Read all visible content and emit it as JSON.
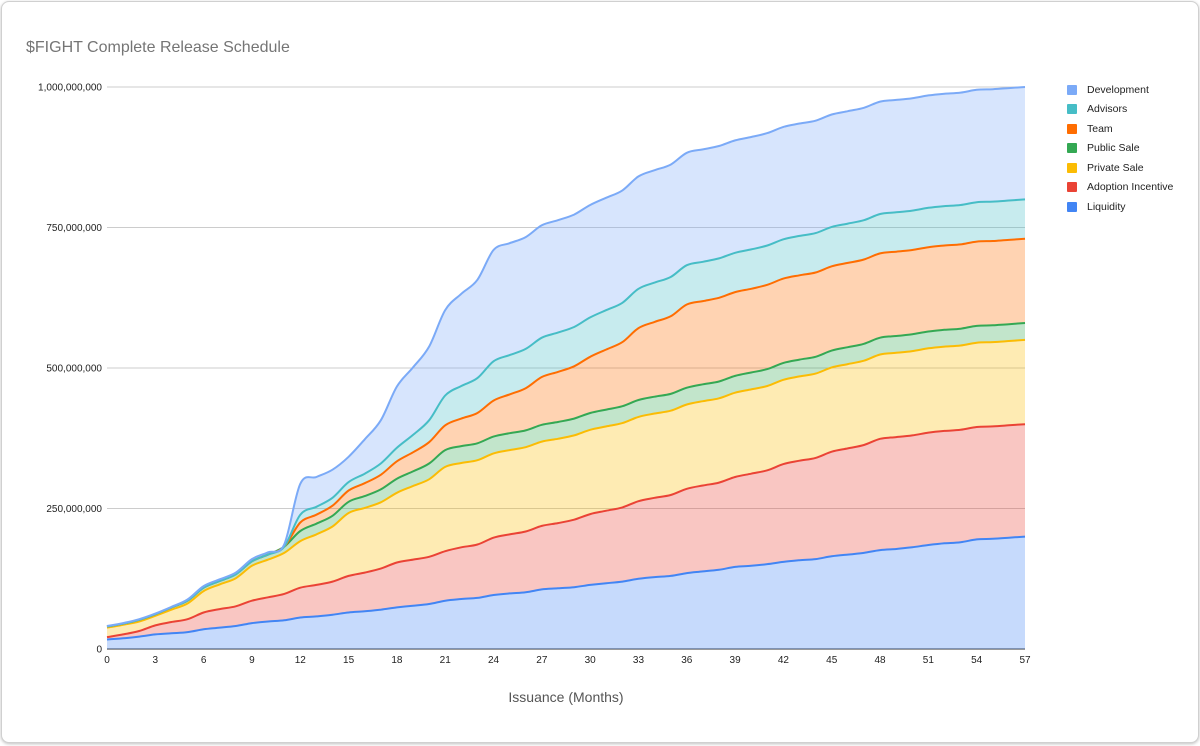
{
  "chart_data": {
    "type": "area",
    "stacked": true,
    "title": "$FIGHT Complete Release Schedule",
    "xlabel": "Issuance (Months)",
    "ylabel": "",
    "x": [
      0,
      1,
      2,
      3,
      4,
      5,
      6,
      7,
      8,
      9,
      10,
      11,
      12,
      13,
      14,
      15,
      16,
      17,
      18,
      19,
      20,
      21,
      22,
      23,
      24,
      25,
      26,
      27,
      28,
      29,
      30,
      31,
      32,
      33,
      34,
      35,
      36,
      37,
      38,
      39,
      40,
      41,
      42,
      43,
      44,
      45,
      46,
      47,
      48,
      49,
      50,
      51,
      52,
      53,
      54,
      55,
      56,
      57
    ],
    "xlim": [
      0,
      57
    ],
    "ylim": [
      0,
      1000000000
    ],
    "x_ticks": [
      "0",
      "3",
      "6",
      "9",
      "12",
      "15",
      "18",
      "21",
      "24",
      "27",
      "30",
      "33",
      "36",
      "39",
      "42",
      "45",
      "48",
      "51",
      "54",
      "57"
    ],
    "y_ticks": [
      "0",
      "250,000,000",
      "500,000,000",
      "750,000,000",
      "1,000,000,000"
    ],
    "grid": true,
    "legend_position": "right",
    "curve": "smooth",
    "series": [
      {
        "name": "Liquidity",
        "color": "#4285F4",
        "values": [
          17000000,
          19000000,
          22000000,
          26000000,
          28000000,
          30000000,
          35000000,
          38000000,
          41000000,
          46000000,
          49000000,
          51000000,
          56000000,
          58000000,
          61000000,
          65000000,
          67000000,
          70000000,
          74000000,
          77000000,
          80000000,
          86000000,
          89000000,
          91000000,
          96000000,
          99000000,
          101000000,
          106000000,
          108000000,
          110000000,
          114000000,
          117000000,
          120000000,
          125000000,
          128000000,
          130000000,
          135000000,
          138000000,
          141000000,
          146000000,
          148000000,
          151000000,
          155000000,
          158000000,
          160000000,
          165000000,
          168000000,
          171000000,
          176000000,
          178000000,
          181000000,
          185000000,
          188000000,
          190000000,
          195000000,
          196000000,
          198000000,
          200000000
        ]
      },
      {
        "name": "Adoption Incentive",
        "color": "#EA4335",
        "values": [
          4000000,
          7000000,
          10000000,
          16000000,
          20000000,
          23000000,
          30000000,
          33000000,
          35000000,
          40000000,
          43000000,
          47000000,
          53000000,
          56000000,
          59000000,
          65000000,
          69000000,
          73000000,
          80000000,
          82000000,
          84000000,
          88000000,
          92000000,
          95000000,
          102000000,
          105000000,
          108000000,
          113000000,
          116000000,
          120000000,
          126000000,
          129000000,
          132000000,
          138000000,
          141000000,
          144000000,
          150000000,
          153000000,
          155000000,
          160000000,
          164000000,
          167000000,
          174000000,
          177000000,
          180000000,
          186000000,
          189000000,
          192000000,
          198000000,
          199000000,
          199000000,
          200000000,
          200000000,
          200000000,
          200000000,
          200000000,
          200000000,
          200000000
        ]
      },
      {
        "name": "Private Sale",
        "color": "#FBBC04",
        "values": [
          17000000,
          17000000,
          17000000,
          17000000,
          22000000,
          28000000,
          38000000,
          44000000,
          50000000,
          62000000,
          67000000,
          73000000,
          83000000,
          90000000,
          98000000,
          112000000,
          115000000,
          118000000,
          124000000,
          131000000,
          138000000,
          150000000,
          150000000,
          150000000,
          150000000,
          150000000,
          150000000,
          150000000,
          150000000,
          150000000,
          150000000,
          150000000,
          150000000,
          150000000,
          150000000,
          150000000,
          150000000,
          150000000,
          150000000,
          150000000,
          150000000,
          150000000,
          150000000,
          150000000,
          150000000,
          150000000,
          150000000,
          150000000,
          150000000,
          150000000,
          150000000,
          150000000,
          150000000,
          150000000,
          150000000,
          150000000,
          150000000,
          150000000
        ]
      },
      {
        "name": "Public Sale",
        "color": "#34A853",
        "values": [
          2000000,
          2000000,
          3000000,
          3000000,
          4000000,
          5000000,
          6000000,
          6000000,
          7000000,
          8000000,
          9000000,
          11000000,
          18000000,
          19000000,
          19000000,
          20000000,
          21000000,
          23000000,
          25000000,
          26000000,
          28000000,
          30000000,
          30000000,
          30000000,
          30000000,
          30000000,
          30000000,
          30000000,
          30000000,
          30000000,
          30000000,
          30000000,
          30000000,
          30000000,
          30000000,
          30000000,
          30000000,
          30000000,
          30000000,
          30000000,
          30000000,
          30000000,
          30000000,
          30000000,
          30000000,
          30000000,
          30000000,
          30000000,
          30000000,
          30000000,
          30000000,
          30000000,
          30000000,
          30000000,
          30000000,
          30000000,
          30000000,
          30000000
        ]
      },
      {
        "name": "Team",
        "color": "#FF6D01",
        "values": [
          0,
          0,
          0,
          0,
          0,
          0,
          0,
          0,
          0,
          0,
          0,
          0,
          15000000,
          16000000,
          18000000,
          20000000,
          23000000,
          26000000,
          31000000,
          34000000,
          38000000,
          44000000,
          49000000,
          54000000,
          64000000,
          69000000,
          75000000,
          85000000,
          89000000,
          93000000,
          100000000,
          107000000,
          114000000,
          128000000,
          133000000,
          138000000,
          148000000,
          148000000,
          149000000,
          149000000,
          149000000,
          150000000,
          150000000,
          150000000,
          150000000,
          150000000,
          150000000,
          150000000,
          150000000,
          150000000,
          150000000,
          150000000,
          150000000,
          150000000,
          150000000,
          150000000,
          150000000,
          150000000
        ]
      },
      {
        "name": "Advisors",
        "color": "#46BDC6",
        "values": [
          0,
          0,
          0,
          0,
          0,
          0,
          0,
          0,
          0,
          0,
          0,
          0,
          14000000,
          14000000,
          14000000,
          15000000,
          17000000,
          20000000,
          24000000,
          31000000,
          39000000,
          53000000,
          58000000,
          62000000,
          70000000,
          70000000,
          70000000,
          70000000,
          70000000,
          70000000,
          70000000,
          70000000,
          70000000,
          70000000,
          70000000,
          70000000,
          70000000,
          70000000,
          70000000,
          70000000,
          70000000,
          70000000,
          70000000,
          70000000,
          70000000,
          70000000,
          70000000,
          70000000,
          70000000,
          70000000,
          70000000,
          70000000,
          70000000,
          70000000,
          70000000,
          70000000,
          70000000,
          70000000
        ]
      },
      {
        "name": "Development",
        "color": "#7BAAF7",
        "values": [
          1000000,
          1000000,
          1000000,
          1000000,
          1000000,
          2000000,
          3000000,
          3000000,
          3000000,
          4000000,
          4000000,
          4000000,
          55000000,
          53000000,
          50000000,
          45000000,
          61000000,
          77000000,
          109000000,
          120000000,
          131000000,
          152000000,
          164000000,
          175000000,
          198000000,
          199000000,
          199000000,
          200000000,
          200000000,
          200000000,
          200000000,
          200000000,
          200000000,
          200000000,
          200000000,
          200000000,
          200000000,
          200000000,
          200000000,
          200000000,
          200000000,
          200000000,
          200000000,
          200000000,
          200000000,
          200000000,
          200000000,
          200000000,
          200000000,
          200000000,
          200000000,
          200000000,
          200000000,
          200000000,
          200000000,
          200000000,
          200000000,
          200000000
        ]
      }
    ]
  }
}
